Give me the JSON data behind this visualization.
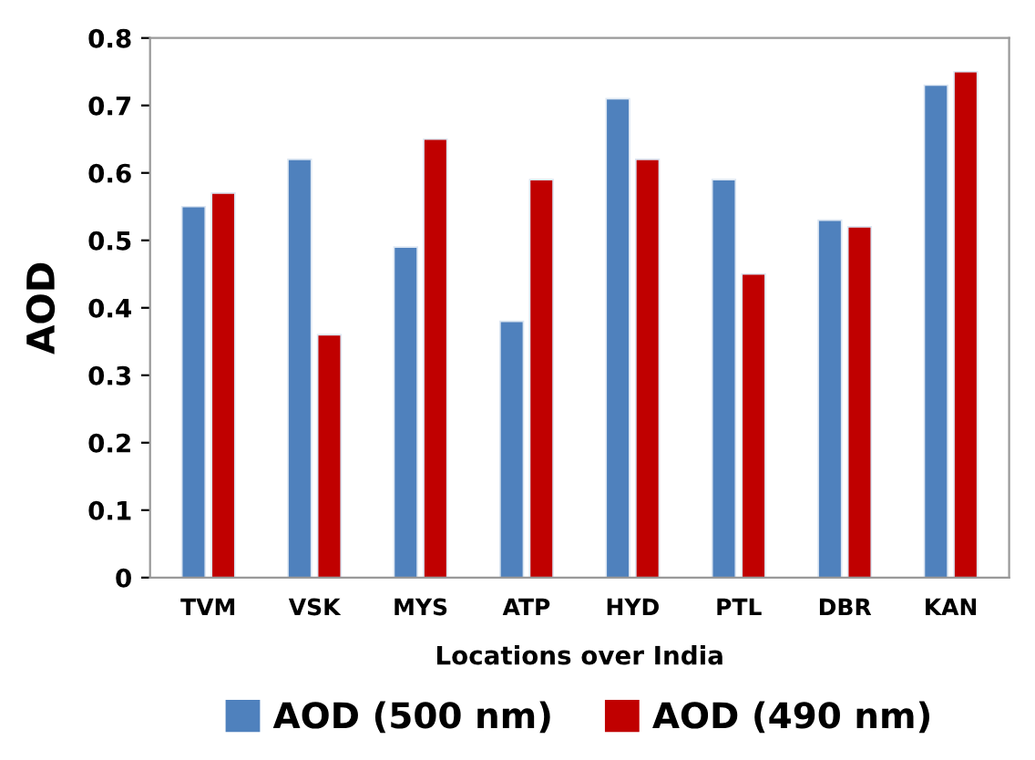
{
  "chart_data": {
    "type": "bar",
    "xlabel": "Locations over India",
    "ylabel": "AOD",
    "categories": [
      "TVM",
      "VSK",
      "MYS",
      "ATP",
      "HYD",
      "PTL",
      "DBR",
      "KAN"
    ],
    "series": [
      {
        "name": "AOD (500 nm)",
        "color": "#4f81bd",
        "values": [
          0.55,
          0.62,
          0.49,
          0.38,
          0.71,
          0.59,
          0.53,
          0.73
        ]
      },
      {
        "name": "AOD (490 nm)",
        "color": "#c00000",
        "values": [
          0.57,
          0.36,
          0.65,
          0.59,
          0.62,
          0.45,
          0.52,
          0.75
        ]
      }
    ],
    "ylim": [
      0,
      0.8
    ],
    "yticks": [
      {
        "value": 0,
        "label": "0"
      },
      0.1,
      0.2,
      0.3,
      0.4,
      0.5,
      0.6,
      0.7,
      0.8
    ],
    "grid": false,
    "legend": "bottom"
  }
}
